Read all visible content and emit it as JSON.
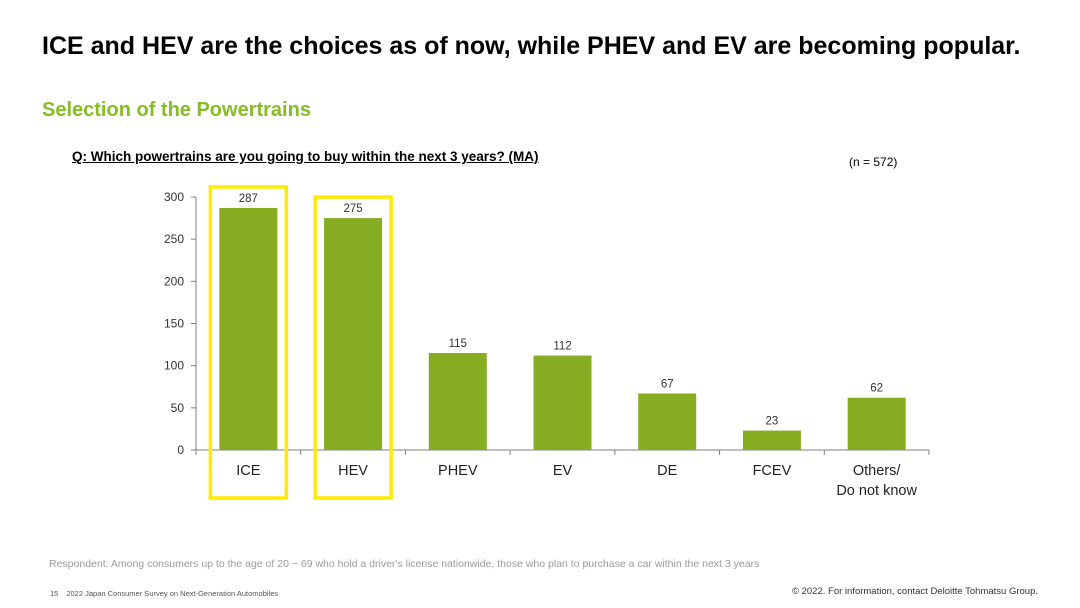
{
  "headline": "ICE and HEV are the choices as of now, while PHEV and EV are becoming popular.",
  "section_title": "Selection of the Powertrains",
  "question": "Q: Which powertrains are you going to buy within the next 3 years? (MA)",
  "sample_size": "(n = 572)",
  "colors": {
    "bar": "#86AC22",
    "highlight": "#FFEB00",
    "section_title": "#86BC25"
  },
  "chart_data": {
    "type": "bar",
    "categories": [
      "ICE",
      "HEV",
      "PHEV",
      "EV",
      "DE",
      "FCEV",
      "Others/\nDo not know"
    ],
    "values": [
      287,
      275,
      115,
      112,
      67,
      23,
      62
    ],
    "highlighted": [
      "ICE",
      "HEV"
    ],
    "ylim": [
      0,
      300
    ],
    "yticks": [
      0,
      50,
      100,
      150,
      200,
      250,
      300
    ],
    "xlabel": "",
    "ylabel": "",
    "grid": false,
    "data_labels": true
  },
  "respondent_note": "Respondent: Among consumers up to the age of 20 ~ 69 who hold a driver's license nationwide, those who plan to purchase a car within the next 3 years",
  "footer": {
    "page_number": "15",
    "report_title": "2022 Japan Consumer Survey on Next-Generation Automobiles",
    "copyright": "© 2022. For information, contact Deloitte Tohmatsu Group."
  }
}
